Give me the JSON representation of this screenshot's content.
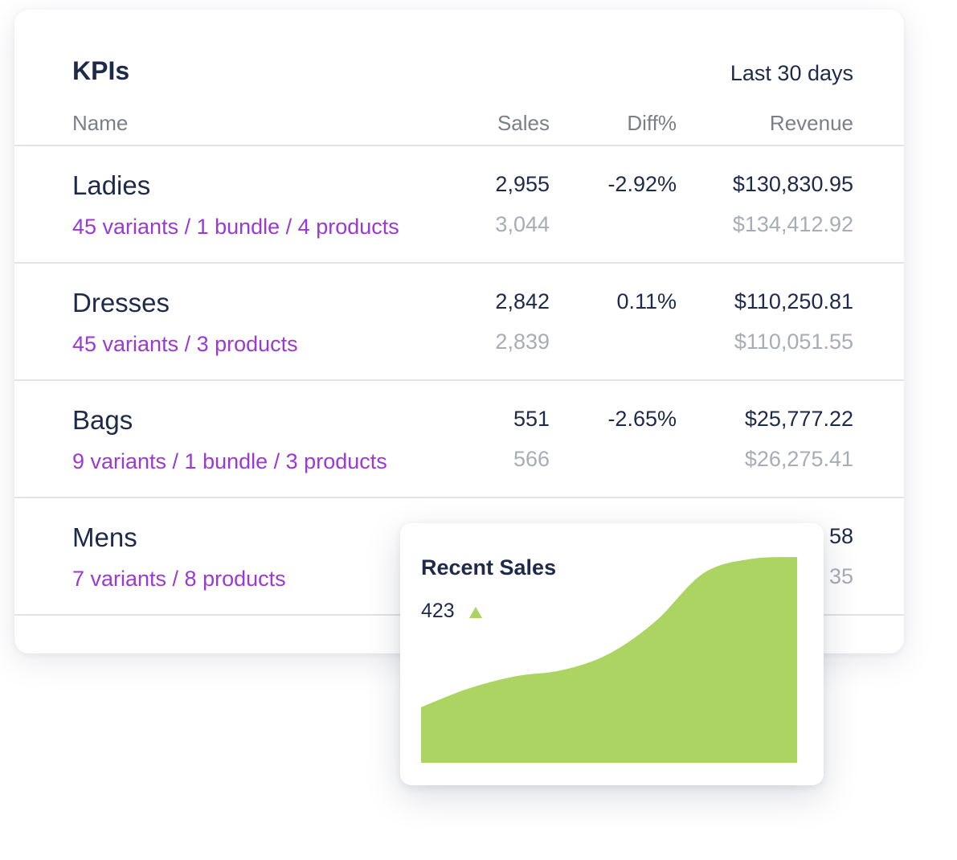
{
  "kpis": {
    "title": "KPIs",
    "period": "Last 30 days",
    "columns": {
      "name": "Name",
      "sales": "Sales",
      "diff": "Diff%",
      "revenue": "Revenue"
    },
    "rows": [
      {
        "name": "Ladies",
        "sub": "45 variants / 1 bundle / 4 products",
        "sales": "2,955",
        "diff": "-2.92%",
        "revenue": "$130,830.95",
        "prev_sales": "3,044",
        "prev_revenue": "$134,412.92"
      },
      {
        "name": "Dresses",
        "sub": "45 variants / 3 products",
        "sales": "2,842",
        "diff": "0.11%",
        "revenue": "$110,250.81",
        "prev_sales": "2,839",
        "prev_revenue": "$110,051.55"
      },
      {
        "name": "Bags",
        "sub": "9 variants / 1 bundle / 3 products",
        "sales": "551",
        "diff": "-2.65%",
        "revenue": "$25,777.22",
        "prev_sales": "566",
        "prev_revenue": "$26,275.41"
      },
      {
        "name": "Mens",
        "sub": "7 variants / 8 products",
        "sales": "",
        "diff": "",
        "revenue": "58",
        "prev_sales": "",
        "prev_revenue": "35"
      }
    ]
  },
  "recent_sales": {
    "title": "Recent Sales",
    "value": "423",
    "trend_icon": "triangle-up-icon",
    "fill_color": "#acd462"
  },
  "chart_data": {
    "type": "area",
    "title": "",
    "x": [
      0,
      1,
      2,
      3,
      4,
      5,
      6,
      7,
      8
    ],
    "values": [
      0.27,
      0.36,
      0.42,
      0.45,
      0.53,
      0.69,
      0.92,
      0.99,
      1.0
    ],
    "ylim": [
      0,
      1
    ],
    "grid": false
  }
}
